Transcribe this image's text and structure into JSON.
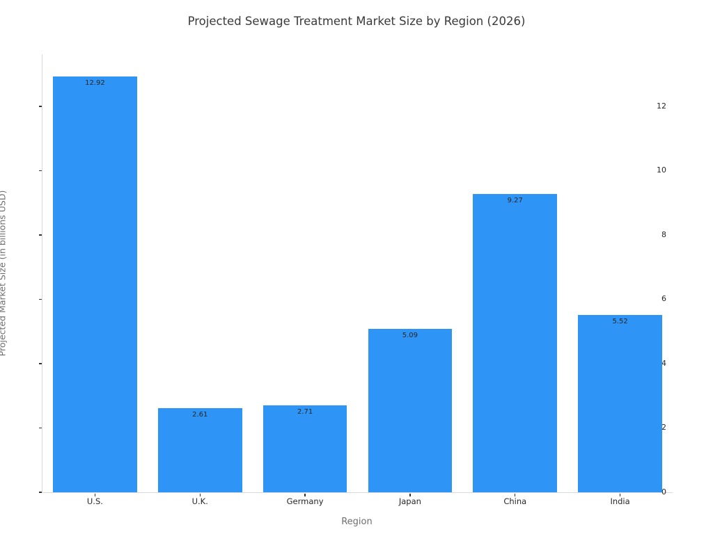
{
  "chart_data": {
    "type": "bar",
    "title": "Projected Sewage Treatment Market Size by Region (2026)",
    "xlabel": "Region",
    "ylabel": "Projected Market Size (in billions USD)",
    "categories": [
      "U.S.",
      "U.K.",
      "Germany",
      "Japan",
      "China",
      "India"
    ],
    "values": [
      12.92,
      2.61,
      2.71,
      5.09,
      9.27,
      5.52
    ],
    "value_labels": [
      "12.92",
      "2.61",
      "2.71",
      "5.09",
      "9.27",
      "5.52"
    ],
    "yticks": [
      0,
      2,
      4,
      6,
      8,
      10,
      12
    ],
    "ylim": [
      0,
      13.62
    ],
    "bar_width_fraction": 0.8,
    "grid": false,
    "legend": "none",
    "colors": {
      "bar": "#2E94F5",
      "spine": "#d9d9d9",
      "tick_mark": "#333333",
      "tick_text": "#262626",
      "axis_label_text": "#6e6e6e",
      "title_text": "#3a3a3a",
      "background": "#ffffff"
    }
  }
}
